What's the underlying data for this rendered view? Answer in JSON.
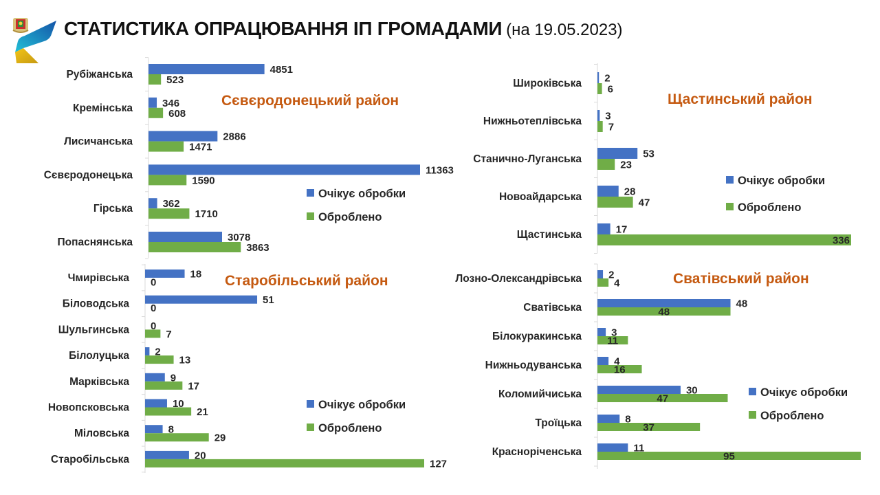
{
  "header": {
    "title": "СТАТИСТИКА ОПРАЦЮВАННЯ ІП ГРОМАДАМИ",
    "date": "(на 19.05.2023)",
    "logo_icon": "luhansk-region-logo"
  },
  "colors": {
    "pending": "#4472c4",
    "processed": "#70ad47",
    "district_title": "#c55a11",
    "axis": "#d9d9d9"
  },
  "chart_data": [
    {
      "type": "bar",
      "orientation": "horizontal",
      "title": "Сєвєродонецький район",
      "categories": [
        "Рубіжанська",
        "Кремінська",
        "Лисичанська",
        "Сєвєродонецька",
        "Гірська",
        "Попаснянська"
      ],
      "series": [
        {
          "name": "Очікує обробки",
          "values": [
            4851,
            346,
            2886,
            11363,
            362,
            3078
          ]
        },
        {
          "name": "Оброблено",
          "values": [
            523,
            608,
            1471,
            1590,
            1710,
            3863
          ]
        }
      ],
      "xlim": [
        0,
        11363
      ],
      "legend": "right",
      "grid": false
    },
    {
      "type": "bar",
      "orientation": "horizontal",
      "title": "Щастинський район",
      "categories": [
        "Широківська",
        "Нижньотеплівська",
        "Станично-Луганська",
        "Новоайдарська",
        "Щастинська"
      ],
      "series": [
        {
          "name": "Очікує обробки",
          "values": [
            2,
            3,
            53,
            28,
            17
          ]
        },
        {
          "name": "Оброблено",
          "values": [
            6,
            7,
            23,
            47,
            336
          ]
        }
      ],
      "xlim": [
        0,
        336
      ],
      "legend": "right",
      "grid": false
    },
    {
      "type": "bar",
      "orientation": "horizontal",
      "title": "Старобільський район",
      "categories": [
        "Чмирівська",
        "Біловодська",
        "Шульгинська",
        "Білолуцька",
        "Марківська",
        "Новопсковська",
        "Міловська",
        "Старобільська"
      ],
      "series": [
        {
          "name": "Очікує обробки",
          "values": [
            18,
            51,
            0,
            2,
            9,
            10,
            8,
            20
          ]
        },
        {
          "name": "Оброблено",
          "values": [
            0,
            0,
            7,
            13,
            17,
            21,
            29,
            127
          ]
        }
      ],
      "xlim": [
        0,
        127
      ],
      "legend": "right",
      "grid": false
    },
    {
      "type": "bar",
      "orientation": "horizontal",
      "title": "Сватівський район",
      "categories": [
        "Лозно-Олександрівська",
        "Сватівська",
        "Білокуракинська",
        "Нижньодуванська",
        "Коломийчиська",
        "Троїцька",
        "Красноріченська"
      ],
      "series": [
        {
          "name": "Очікує обробки",
          "values": [
            2,
            48,
            3,
            4,
            30,
            8,
            11
          ]
        },
        {
          "name": "Оброблено",
          "values": [
            4,
            48,
            11,
            16,
            47,
            37,
            95
          ]
        }
      ],
      "xlim": [
        0,
        95
      ],
      "legend": "right",
      "grid": false
    }
  ]
}
